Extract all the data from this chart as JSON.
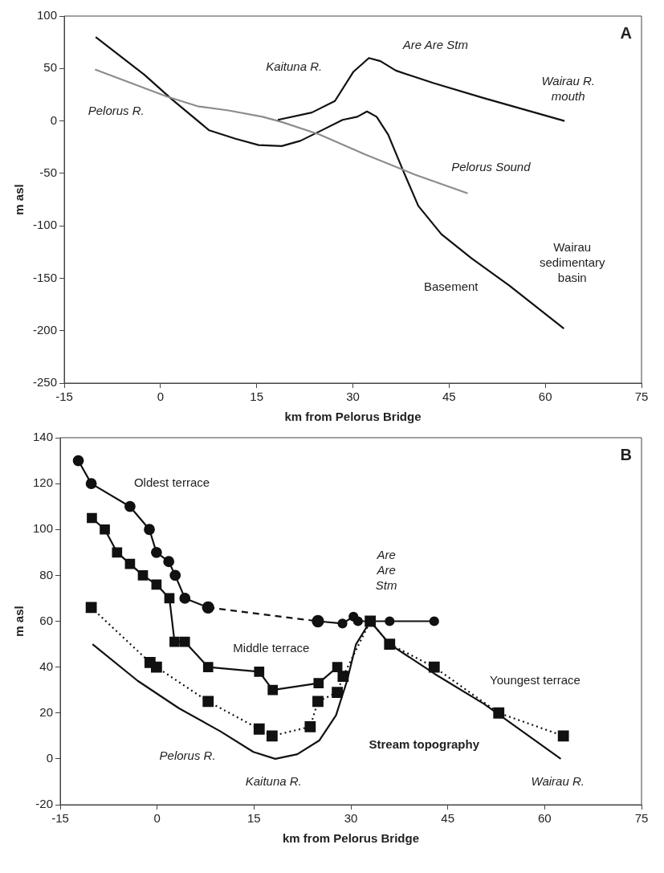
{
  "chart_data": [
    {
      "type": "line",
      "xlabel": "km from Pelorus Bridge",
      "ylabel": "m asl",
      "xlim": [
        -15,
        75
      ],
      "xticks": [
        -15,
        0,
        15,
        30,
        45,
        60,
        75
      ],
      "ylim": [
        -250,
        100
      ],
      "yticks": [
        -250,
        -200,
        -150,
        -100,
        -50,
        0,
        50,
        100
      ],
      "grid": false,
      "legend": false,
      "series": [
        {
          "color": "#111111",
          "marker": "none",
          "line_style": "solid",
          "x": [
            18.3,
            23.6,
            27.2,
            30.1,
            32.5,
            34.3,
            36.7,
            42.6,
            50.3,
            63
          ],
          "values": [
            1,
            8,
            19,
            47,
            60,
            57,
            48,
            36,
            22,
            0
          ]
        },
        {
          "color": "#8c8c8c",
          "marker": "none",
          "line_style": "solid",
          "x": [
            -10.2,
            1.1,
            5.8,
            10.6,
            15.9,
            18.9,
            24.8,
            31.9,
            39.6,
            47.9
          ],
          "values": [
            49,
            23,
            14,
            10,
            4,
            -1,
            -13,
            -32,
            -51,
            -69
          ]
        },
        {
          "color": "#111111",
          "marker": "none",
          "line_style": "solid",
          "x": [
            -10.1,
            -2.5,
            1.7,
            7.6,
            11.7,
            15.3,
            18.9,
            21.8,
            24.8,
            28.4,
            30.7,
            32.2,
            33.7,
            35.5,
            37.8,
            40.2,
            43.8,
            48.5,
            54.4,
            62.9
          ],
          "values": [
            80,
            44,
            21,
            -9,
            -17,
            -23,
            -24,
            -19,
            -10,
            1,
            4,
            9,
            4,
            -13,
            -47,
            -81,
            -108,
            -131,
            -157,
            -198
          ]
        }
      ],
      "annotations": [
        "A",
        "Are Are Stm",
        "Kaituna R.",
        "Wairau R.\nmouth",
        "Pelorus R.",
        "Pelorus Sound",
        "Basement",
        "Wairau\nsedimentary\nbasin"
      ]
    },
    {
      "type": "line",
      "xlabel": "km from Pelorus Bridge",
      "ylabel": "m asl",
      "xlim": [
        -15,
        75
      ],
      "xticks": [
        -15,
        0,
        15,
        30,
        45,
        60,
        75
      ],
      "ylim": [
        -20,
        140
      ],
      "yticks": [
        -20,
        0,
        20,
        40,
        60,
        80,
        100,
        120,
        140
      ],
      "grid": false,
      "legend": false,
      "series": [
        {
          "color": "#111111",
          "marker": "none",
          "line_style": "solid",
          "x": [
            -10,
            -3,
            3.4,
            9.8,
            14.9,
            18.3,
            21.7,
            25.1,
            27.7,
            29.4,
            30.8,
            33,
            36,
            43,
            50.6,
            62.5
          ],
          "values": [
            50,
            34,
            22,
            12,
            3,
            0,
            2,
            8,
            19,
            34,
            50,
            60,
            50,
            37,
            24,
            0
          ]
        },
        {
          "color": "#111111",
          "marker": "square",
          "line_style": "dotted",
          "x": [
            -10.2,
            -1.1,
            -0.1,
            7.9,
            15.8,
            17.8,
            23.7,
            24.9,
            27.9,
            28.8,
            33,
            36,
            42.9,
            52.9,
            62.9
          ],
          "values": [
            66,
            42,
            40,
            25,
            13,
            10,
            14,
            25,
            29,
            36,
            60,
            50,
            40,
            20,
            10
          ]
        },
        {
          "color": "#111111",
          "marker": "square",
          "line_style": "solid",
          "x": [
            -10.1,
            -8.1,
            -6.2,
            -4.2,
            -2.2,
            -0.1,
            1.9,
            2.7,
            4.3,
            7.9,
            15.8,
            17.9,
            25,
            27.9
          ],
          "values": [
            105,
            100,
            90,
            85,
            80,
            76,
            70,
            51,
            51,
            40,
            38,
            30,
            33,
            40
          ]
        },
        {
          "color": "#111111",
          "marker": "circle",
          "line_style": "dashed",
          "x": [
            7.9,
            24.9
          ],
          "values": [
            66,
            60
          ]
        },
        {
          "color": "#111111",
          "marker": "circle",
          "line_style": "solid",
          "x": [
            -12.2,
            -10.2,
            -4.2,
            -1.2,
            -0.1,
            1.8,
            2.8,
            4.3,
            7.9
          ],
          "values": [
            130,
            120,
            110,
            100,
            90,
            86,
            80,
            70,
            66
          ]
        },
        {
          "color": "#111111",
          "marker": "circle",
          "line_style": "solid",
          "x": [
            24.9,
            28.7,
            30.4,
            31.1,
            36,
            42.9
          ],
          "values": [
            60,
            59,
            62,
            60,
            60,
            60
          ]
        }
      ],
      "annotations": [
        "B",
        "Oldest terrace",
        "Middle terrace",
        "Are\nAre\nStm",
        "Youngest terrace",
        "Stream topography",
        "Pelorus R.",
        "Kaituna R.",
        "Wairau R."
      ]
    }
  ]
}
